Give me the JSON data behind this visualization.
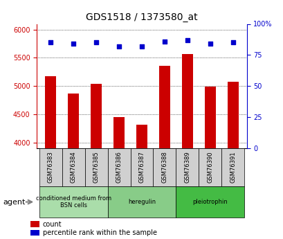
{
  "title": "GDS1518 / 1373580_at",
  "categories": [
    "GSM76383",
    "GSM76384",
    "GSM76385",
    "GSM76386",
    "GSM76387",
    "GSM76388",
    "GSM76389",
    "GSM76390",
    "GSM76391"
  ],
  "bar_values": [
    5180,
    4870,
    5040,
    4450,
    4320,
    5360,
    5570,
    4990,
    5080
  ],
  "percentile_values": [
    85,
    84,
    85,
    82,
    82,
    86,
    87,
    84,
    85
  ],
  "ylim_left": [
    3900,
    6100
  ],
  "ylim_right": [
    0,
    100
  ],
  "yticks_left": [
    4000,
    4500,
    5000,
    5500,
    6000
  ],
  "yticks_right": [
    0,
    25,
    50,
    75,
    100
  ],
  "bar_color": "#cc0000",
  "dot_color": "#0000cc",
  "grid_color": "#000000",
  "bg_color": "#ffffff",
  "plot_bg_color": "#ffffff",
  "groups": [
    {
      "label": "conditioned medium from\nBSN cells",
      "start": 0,
      "end": 3,
      "color": "#aaddaa"
    },
    {
      "label": "heregulin",
      "start": 3,
      "end": 6,
      "color": "#88cc88"
    },
    {
      "label": "pleiotrophin",
      "start": 6,
      "end": 9,
      "color": "#44bb44"
    }
  ],
  "legend_items": [
    {
      "label": "count",
      "color": "#cc0000"
    },
    {
      "label": "percentile rank within the sample",
      "color": "#0000cc"
    }
  ]
}
